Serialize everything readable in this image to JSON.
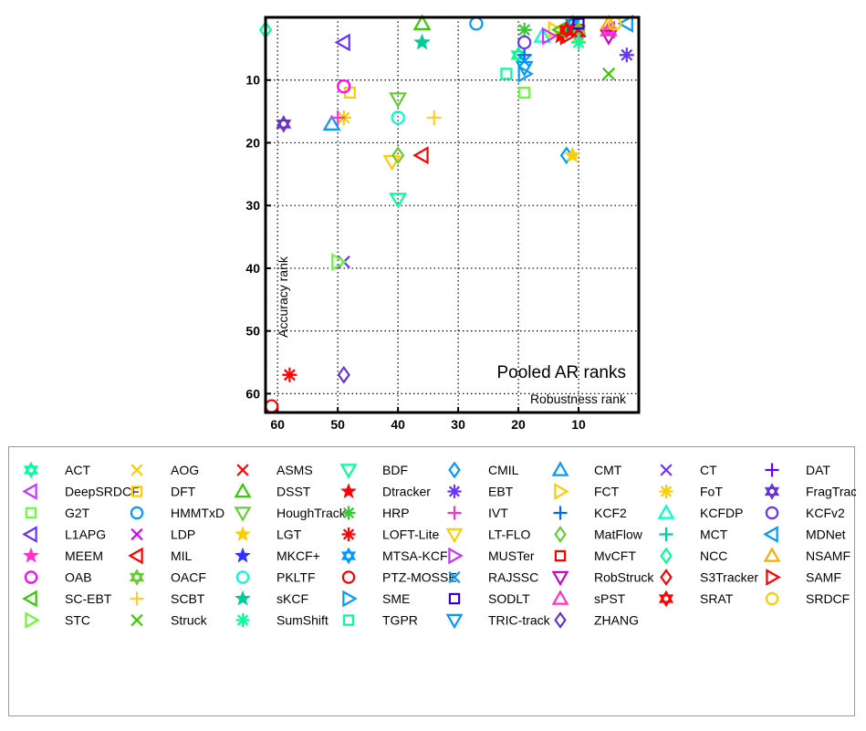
{
  "chart_data": {
    "type": "scatter",
    "title": "Pooled AR ranks",
    "xlabel": "Robustness rank",
    "ylabel": "Accuracy rank",
    "xlim": [
      62,
      0
    ],
    "ylim": [
      0,
      63
    ],
    "x_reversed": true,
    "y_reversed": true,
    "xticks": [
      60,
      50,
      40,
      30,
      20,
      10
    ],
    "yticks": [
      10,
      20,
      30,
      40,
      50,
      60
    ],
    "grid": true,
    "legend_placement": "below",
    "series": [
      {
        "name": "ACT",
        "marker": "hexagram",
        "color": "#00ff99",
        "points": [
          [
            20,
            6
          ]
        ]
      },
      {
        "name": "AOG",
        "marker": "x",
        "color": "#ffcc00",
        "points": [
          [
            10,
            3
          ]
        ]
      },
      {
        "name": "ASMS",
        "marker": "x",
        "color": "#ff0000",
        "points": [
          [
            12,
            2
          ]
        ]
      },
      {
        "name": "BDF",
        "marker": "triangle-down",
        "color": "#00ff99",
        "points": [
          [
            40,
            29
          ]
        ]
      },
      {
        "name": "CMIL",
        "marker": "diamond",
        "color": "#0099ff",
        "points": [
          [
            12,
            22
          ]
        ]
      },
      {
        "name": "CMT",
        "marker": "triangle-up",
        "color": "#0099ff",
        "points": [
          [
            51,
            17
          ]
        ]
      },
      {
        "name": "CT",
        "marker": "x",
        "color": "#6633ff",
        "points": [
          [
            49,
            39
          ]
        ]
      },
      {
        "name": "DAT",
        "marker": "plus",
        "color": "#6600ff",
        "points": [
          [
            10,
            3
          ]
        ]
      },
      {
        "name": "DeepSRDCF",
        "marker": "triangle-left",
        "color": "#cc33ff",
        "points": [
          [
            5,
            2
          ]
        ]
      },
      {
        "name": "DFT",
        "marker": "square",
        "color": "#ffcc00",
        "points": [
          [
            48,
            12
          ]
        ]
      },
      {
        "name": "DSST",
        "marker": "triangle-up",
        "color": "#33cc00",
        "points": [
          [
            36,
            1
          ]
        ]
      },
      {
        "name": "Dtracker",
        "marker": "pentagram",
        "color": "#ff0000",
        "points": [
          [
            13,
            3
          ]
        ]
      },
      {
        "name": "EBT",
        "marker": "asterisk",
        "color": "#6633ff",
        "points": [
          [
            2,
            6
          ]
        ]
      },
      {
        "name": "FCT",
        "marker": "triangle-right",
        "color": "#ffcc00",
        "points": [
          [
            14,
            2
          ]
        ]
      },
      {
        "name": "FoT",
        "marker": "asterisk",
        "color": "#ffcc00",
        "points": [
          [
            49,
            16
          ]
        ]
      },
      {
        "name": "FragTrack",
        "marker": "hexagram",
        "color": "#6633cc",
        "points": [
          [
            59,
            17
          ]
        ]
      },
      {
        "name": "G2T",
        "marker": "square",
        "color": "#66ff33",
        "points": [
          [
            19,
            12
          ]
        ]
      },
      {
        "name": "HMMTxD",
        "marker": "circle",
        "color": "#0099ff",
        "points": [
          [
            27,
            1
          ]
        ]
      },
      {
        "name": "HoughTrack",
        "marker": "triangle-down",
        "color": "#66cc33",
        "points": [
          [
            40,
            13
          ]
        ]
      },
      {
        "name": "HRP",
        "marker": "asterisk",
        "color": "#33cc33",
        "points": [
          [
            19,
            2
          ]
        ]
      },
      {
        "name": "IVT",
        "marker": "plus",
        "color": "#ff33cc",
        "points": [
          [
            50,
            16
          ]
        ]
      },
      {
        "name": "KCF2",
        "marker": "plus",
        "color": "#0066ff",
        "points": [
          [
            19,
            6
          ]
        ]
      },
      {
        "name": "KCFDP",
        "marker": "triangle-up",
        "color": "#00ffcc",
        "points": [
          [
            16,
            3
          ]
        ]
      },
      {
        "name": "KCFv2",
        "marker": "circle",
        "color": "#6633ff",
        "points": [
          [
            19,
            4
          ]
        ]
      },
      {
        "name": "L1APG",
        "marker": "triangle-left",
        "color": "#6633ff",
        "points": [
          [
            49,
            4
          ]
        ]
      },
      {
        "name": "LDP",
        "marker": "x",
        "color": "#cc00ff",
        "points": [
          [
            10,
            2
          ]
        ]
      },
      {
        "name": "LGT",
        "marker": "pentagram",
        "color": "#ffcc00",
        "points": [
          [
            11,
            22
          ]
        ]
      },
      {
        "name": "LOFT-Lite",
        "marker": "asterisk",
        "color": "#ff0000",
        "points": [
          [
            58,
            57
          ]
        ]
      },
      {
        "name": "LT-FLO",
        "marker": "triangle-down",
        "color": "#ffcc00",
        "points": [
          [
            41,
            23
          ]
        ]
      },
      {
        "name": "MatFlow",
        "marker": "diamond",
        "color": "#66cc33",
        "points": [
          [
            40,
            22
          ]
        ]
      },
      {
        "name": "MCT",
        "marker": "plus",
        "color": "#00cc99",
        "points": [
          [
            10,
            4
          ]
        ]
      },
      {
        "name": "MDNet",
        "marker": "triangle-left",
        "color": "#0099ff",
        "points": [
          [
            2,
            1
          ]
        ]
      },
      {
        "name": "MEEM",
        "marker": "pentagram",
        "color": "#ff33cc",
        "points": [
          [
            5,
            2
          ]
        ]
      },
      {
        "name": "MIL",
        "marker": "triangle-left",
        "color": "#ff0000",
        "points": [
          [
            36,
            22
          ]
        ]
      },
      {
        "name": "MKCF+",
        "marker": "pentagram",
        "color": "#3333ff",
        "points": [
          [
            11,
            2
          ]
        ]
      },
      {
        "name": "MTSA-KCF",
        "marker": "hexagram",
        "color": "#0099ff",
        "points": [
          [
            11,
            1
          ]
        ]
      },
      {
        "name": "MUSTer",
        "marker": "triangle-right",
        "color": "#cc33ff",
        "points": [
          [
            15,
            3
          ]
        ]
      },
      {
        "name": "MvCFT",
        "marker": "square",
        "color": "#ff0000",
        "points": [
          [
            10,
            2
          ]
        ]
      },
      {
        "name": "NCC",
        "marker": "diamond",
        "color": "#00ff99",
        "points": [
          [
            62,
            2
          ]
        ]
      },
      {
        "name": "NSAMF",
        "marker": "triangle-up",
        "color": "#ffaa00",
        "points": [
          [
            5,
            1
          ]
        ]
      },
      {
        "name": "OAB",
        "marker": "circle",
        "color": "#ff00ff",
        "points": [
          [
            49,
            11
          ]
        ]
      },
      {
        "name": "OACF",
        "marker": "hexagram",
        "color": "#66cc33",
        "points": [
          [
            10,
            2
          ]
        ]
      },
      {
        "name": "PKLTF",
        "marker": "circle",
        "color": "#00ffcc",
        "points": [
          [
            40,
            16
          ]
        ]
      },
      {
        "name": "PTZ-MOSSE",
        "marker": "circle",
        "color": "#ff0000",
        "points": [
          [
            61,
            62
          ]
        ]
      },
      {
        "name": "RAJSSC",
        "marker": "x",
        "color": "#0099ff",
        "points": [
          [
            19,
            7
          ]
        ]
      },
      {
        "name": "RobStruck",
        "marker": "triangle-down",
        "color": "#cc00cc",
        "points": [
          [
            5,
            3
          ]
        ]
      },
      {
        "name": "S3Tracker",
        "marker": "diamond",
        "color": "#ff0000",
        "points": [
          [
            10,
            3
          ]
        ]
      },
      {
        "name": "SAMF",
        "marker": "triangle-right",
        "color": "#ff0000",
        "points": [
          [
            12,
            3
          ]
        ]
      },
      {
        "name": "SC-EBT",
        "marker": "triangle-left",
        "color": "#33cc00",
        "points": [
          [
            13,
            2
          ]
        ]
      },
      {
        "name": "SCBT",
        "marker": "plus",
        "color": "#ffcc33",
        "points": [
          [
            34,
            16
          ]
        ]
      },
      {
        "name": "sKCF",
        "marker": "pentagram",
        "color": "#00cc99",
        "points": [
          [
            36,
            4
          ]
        ]
      },
      {
        "name": "SME",
        "marker": "triangle-right",
        "color": "#0099ff",
        "points": [
          [
            19,
            9
          ]
        ]
      },
      {
        "name": "SODLT",
        "marker": "square",
        "color": "#3300cc",
        "points": [
          [
            10,
            1
          ]
        ]
      },
      {
        "name": "sPST",
        "marker": "triangle-up",
        "color": "#ff33cc",
        "points": [
          [
            5,
            2
          ]
        ]
      },
      {
        "name": "SRAT",
        "marker": "hexagram",
        "color": "#ff0000",
        "points": [
          [
            12,
            2
          ]
        ]
      },
      {
        "name": "SRDCF",
        "marker": "circle",
        "color": "#ffcc00",
        "points": [
          [
            4,
            1
          ]
        ]
      },
      {
        "name": "STC",
        "marker": "triangle-right",
        "color": "#66ff33",
        "points": [
          [
            50,
            39
          ]
        ]
      },
      {
        "name": "Struck",
        "marker": "x",
        "color": "#33cc00",
        "points": [
          [
            5,
            9
          ]
        ]
      },
      {
        "name": "SumShift",
        "marker": "asterisk",
        "color": "#00ff99",
        "points": [
          [
            10,
            4
          ]
        ]
      },
      {
        "name": "TGPR",
        "marker": "square",
        "color": "#00ff99",
        "points": [
          [
            22,
            9
          ]
        ]
      },
      {
        "name": "TRIC-track",
        "marker": "triangle-down",
        "color": "#0099ff",
        "points": [
          [
            19,
            8
          ]
        ]
      },
      {
        "name": "ZHANG",
        "marker": "diamond",
        "color": "#6633cc",
        "points": [
          [
            49,
            57
          ]
        ]
      }
    ]
  }
}
